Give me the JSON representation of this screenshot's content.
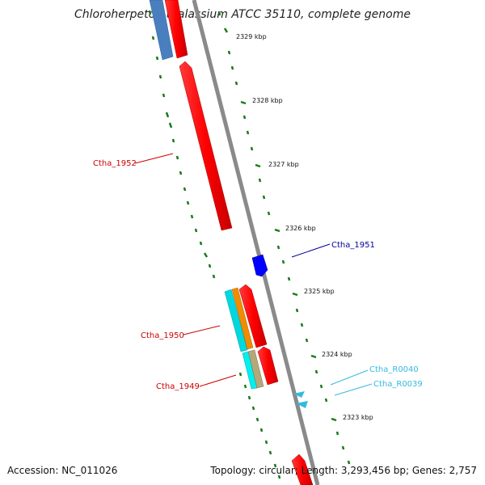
{
  "header": {
    "title": "Chloroherpeton thalassium ATCC 35110, complete genome"
  },
  "footer": {
    "accession": "Accession: NC_011026",
    "summary": "Topology: circular; Length: 3,293,456 bp; Genes: 2,757"
  },
  "ticks": [
    {
      "label": "2329 kbp"
    },
    {
      "label": "2328 kbp"
    },
    {
      "label": "2327 kbp"
    },
    {
      "label": "2326 kbp"
    },
    {
      "label": "2325 kbp"
    },
    {
      "label": "2324 kbp"
    },
    {
      "label": "2323 kbp"
    }
  ],
  "genes": [
    {
      "label": "Ctha_1952",
      "color": "#cc0000"
    },
    {
      "label": "Ctha_1951",
      "color": "#000099"
    },
    {
      "label": "Ctha_1950",
      "color": "#cc0000"
    },
    {
      "label": "Ctha_1949",
      "color": "#cc0000"
    },
    {
      "label": "Ctha_R0040",
      "color": "#33bbdd"
    },
    {
      "label": "Ctha_R0039",
      "color": "#33bbdd"
    }
  ],
  "colors": {
    "backbone": "#8a8a8a",
    "cds_forward": "#ff0000",
    "cds_reverse_blue": "#0000ff",
    "cog_steelblue": "#4a7fbf",
    "cog_cyan": "#00d8e0",
    "cog_orange": "#f08c00",
    "cog_tan": "#b4a87a",
    "rna": "#33bbdd",
    "gc_skew": "#1a7a1a"
  }
}
